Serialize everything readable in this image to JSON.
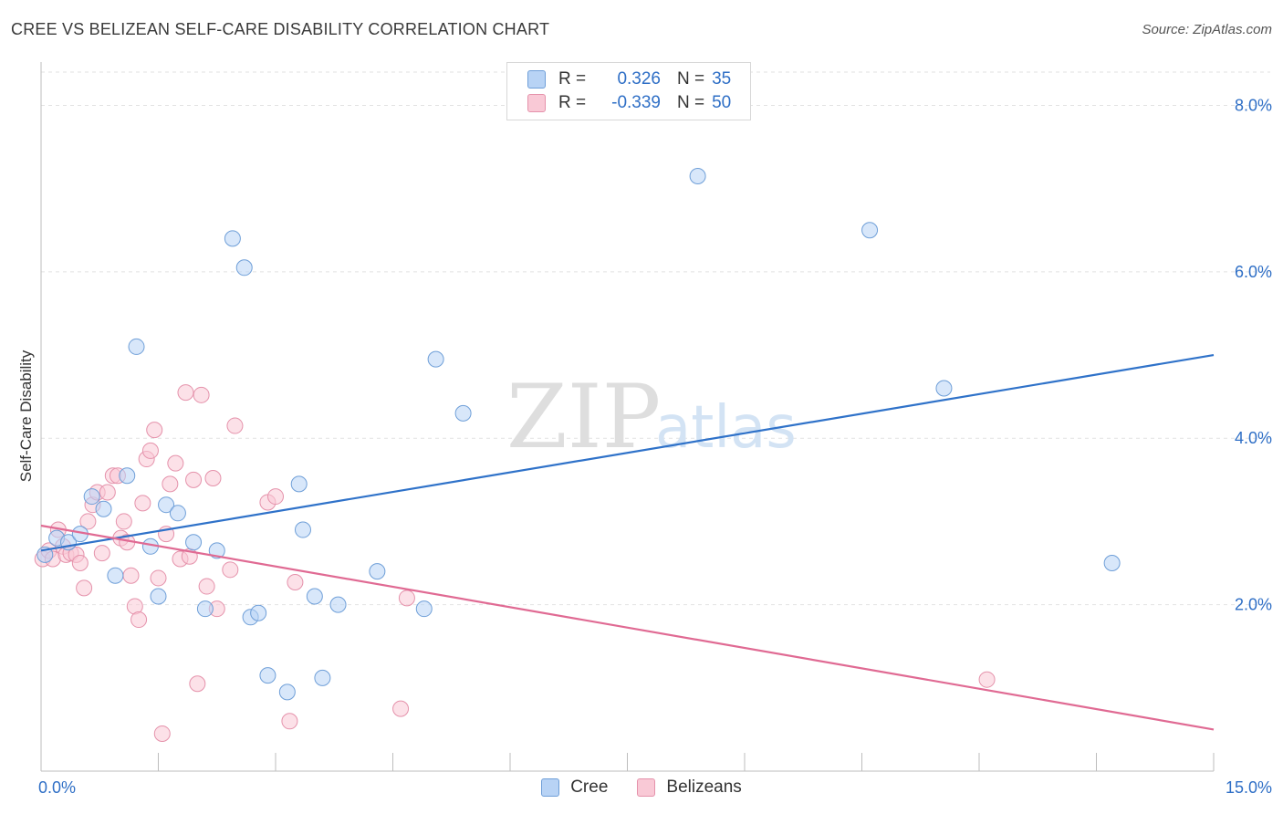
{
  "title": "CREE VS BELIZEAN SELF-CARE DISABILITY CORRELATION CHART",
  "source": "Source: ZipAtlas.com",
  "watermark": {
    "zip": "ZIP",
    "atlas": "atlas"
  },
  "legend": {
    "r_label": "R =",
    "n_label": "N =",
    "rows": [
      {
        "name": "Cree",
        "r": "0.326",
        "n": "35"
      },
      {
        "name": "Belizeans",
        "r": "-0.339",
        "n": "50"
      }
    ]
  },
  "colors": {
    "cree_fill": "#b8d3f5",
    "cree_stroke": "#6f9fd8",
    "cree_line": "#2f72c9",
    "beliz_fill": "#f9c9d6",
    "beliz_stroke": "#e592ab",
    "beliz_line": "#e06a93",
    "value_text": "#2f6fc6",
    "grid": "#e2e2e2"
  },
  "chart_data": {
    "type": "scatter",
    "title": "CREE VS BELIZEAN SELF-CARE DISABILITY CORRELATION CHART",
    "xlabel": "",
    "ylabel": "Self-Care Disability",
    "xlim": [
      0,
      15
    ],
    "ylim": [
      0,
      8.4
    ],
    "x_tick_labels": [
      "0.0%",
      "15.0%"
    ],
    "y_ticks": [
      2,
      4,
      6,
      8
    ],
    "y_tick_labels": [
      "2.0%",
      "4.0%",
      "6.0%",
      "8.0%"
    ],
    "legend_position": "top-center",
    "series": [
      {
        "name": "Cree",
        "r": 0.326,
        "n": 35,
        "trend": {
          "x": [
            0,
            15
          ],
          "y": [
            2.65,
            5.0
          ]
        },
        "points": [
          {
            "x": 0.05,
            "y": 2.6
          },
          {
            "x": 0.2,
            "y": 2.8
          },
          {
            "x": 0.35,
            "y": 2.75
          },
          {
            "x": 0.5,
            "y": 2.85
          },
          {
            "x": 0.65,
            "y": 3.3
          },
          {
            "x": 0.8,
            "y": 3.15
          },
          {
            "x": 0.95,
            "y": 2.35
          },
          {
            "x": 1.1,
            "y": 3.55
          },
          {
            "x": 1.22,
            "y": 5.1
          },
          {
            "x": 1.4,
            "y": 2.7
          },
          {
            "x": 1.5,
            "y": 2.1
          },
          {
            "x": 1.6,
            "y": 3.2
          },
          {
            "x": 1.75,
            "y": 3.1
          },
          {
            "x": 1.95,
            "y": 2.75
          },
          {
            "x": 2.1,
            "y": 1.95
          },
          {
            "x": 2.25,
            "y": 2.65
          },
          {
            "x": 2.45,
            "y": 6.4
          },
          {
            "x": 2.6,
            "y": 6.05
          },
          {
            "x": 2.68,
            "y": 1.85
          },
          {
            "x": 2.78,
            "y": 1.9
          },
          {
            "x": 2.9,
            "y": 1.15
          },
          {
            "x": 3.15,
            "y": 0.95
          },
          {
            "x": 3.3,
            "y": 3.45
          },
          {
            "x": 3.35,
            "y": 2.9
          },
          {
            "x": 3.5,
            "y": 2.1
          },
          {
            "x": 3.6,
            "y": 1.12
          },
          {
            "x": 3.8,
            "y": 2.0
          },
          {
            "x": 4.3,
            "y": 2.4
          },
          {
            "x": 4.9,
            "y": 1.95
          },
          {
            "x": 5.05,
            "y": 4.95
          },
          {
            "x": 5.4,
            "y": 4.3
          },
          {
            "x": 8.4,
            "y": 7.15
          },
          {
            "x": 10.6,
            "y": 6.5
          },
          {
            "x": 11.55,
            "y": 4.6
          },
          {
            "x": 13.7,
            "y": 2.5
          }
        ]
      },
      {
        "name": "Belizeans",
        "r": -0.339,
        "n": 50,
        "trend": {
          "x": [
            0,
            15
          ],
          "y": [
            2.95,
            0.5
          ]
        },
        "points": [
          {
            "x": 0.02,
            "y": 2.55
          },
          {
            "x": 0.1,
            "y": 2.65
          },
          {
            "x": 0.15,
            "y": 2.55
          },
          {
            "x": 0.22,
            "y": 2.9
          },
          {
            "x": 0.28,
            "y": 2.7
          },
          {
            "x": 0.32,
            "y": 2.6
          },
          {
            "x": 0.38,
            "y": 2.62
          },
          {
            "x": 0.45,
            "y": 2.6
          },
          {
            "x": 0.5,
            "y": 2.5
          },
          {
            "x": 0.55,
            "y": 2.2
          },
          {
            "x": 0.6,
            "y": 3.0
          },
          {
            "x": 0.66,
            "y": 3.2
          },
          {
            "x": 0.72,
            "y": 3.35
          },
          {
            "x": 0.78,
            "y": 2.62
          },
          {
            "x": 0.85,
            "y": 3.35
          },
          {
            "x": 0.92,
            "y": 3.55
          },
          {
            "x": 0.98,
            "y": 3.55
          },
          {
            "x": 1.02,
            "y": 2.8
          },
          {
            "x": 1.06,
            "y": 3.0
          },
          {
            "x": 1.1,
            "y": 2.75
          },
          {
            "x": 1.15,
            "y": 2.35
          },
          {
            "x": 1.2,
            "y": 1.98
          },
          {
            "x": 1.25,
            "y": 1.82
          },
          {
            "x": 1.3,
            "y": 3.22
          },
          {
            "x": 1.35,
            "y": 3.75
          },
          {
            "x": 1.4,
            "y": 3.85
          },
          {
            "x": 1.45,
            "y": 4.1
          },
          {
            "x": 1.5,
            "y": 2.32
          },
          {
            "x": 1.55,
            "y": 0.45
          },
          {
            "x": 1.6,
            "y": 2.85
          },
          {
            "x": 1.65,
            "y": 3.45
          },
          {
            "x": 1.72,
            "y": 3.7
          },
          {
            "x": 1.78,
            "y": 2.55
          },
          {
            "x": 1.85,
            "y": 4.55
          },
          {
            "x": 1.9,
            "y": 2.58
          },
          {
            "x": 1.95,
            "y": 3.5
          },
          {
            "x": 2.0,
            "y": 1.05
          },
          {
            "x": 2.05,
            "y": 4.52
          },
          {
            "x": 2.12,
            "y": 2.22
          },
          {
            "x": 2.2,
            "y": 3.52
          },
          {
            "x": 2.25,
            "y": 1.95
          },
          {
            "x": 2.42,
            "y": 2.42
          },
          {
            "x": 2.48,
            "y": 4.15
          },
          {
            "x": 2.9,
            "y": 3.23
          },
          {
            "x": 3.0,
            "y": 3.3
          },
          {
            "x": 3.18,
            "y": 0.6
          },
          {
            "x": 3.25,
            "y": 2.27
          },
          {
            "x": 4.6,
            "y": 0.75
          },
          {
            "x": 4.68,
            "y": 2.08
          },
          {
            "x": 12.1,
            "y": 1.1
          }
        ]
      }
    ]
  }
}
